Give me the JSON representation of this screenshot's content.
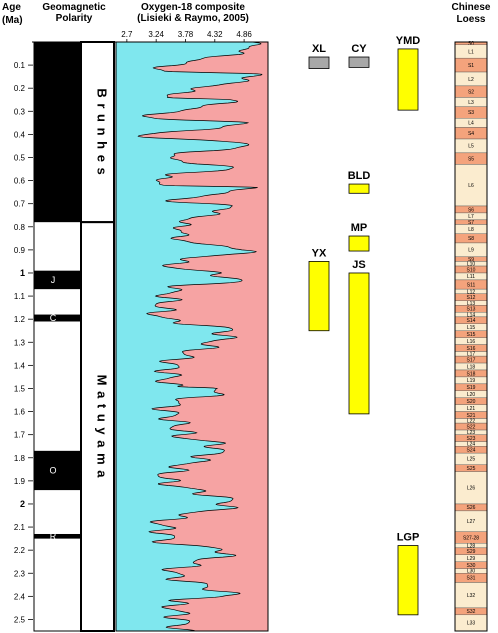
{
  "headers": {
    "age": [
      "Age",
      "(Ma)"
    ],
    "polarity": [
      "Geomagnetic",
      "Polarity"
    ],
    "oxygen": [
      "Oxygen-18 composite",
      "(Lisieki & Raymo, 2005)"
    ],
    "loess": [
      "Chinese",
      "Loess"
    ]
  },
  "chart_data": {
    "type": "area",
    "title": "Oxygen-18 composite (Lisieki & Raymo, 2005)",
    "ylabel": "Age (Ma)",
    "ylim": [
      0,
      2.55
    ],
    "xlim": [
      2.5,
      5.3
    ],
    "x_ticks": [
      "2.7",
      "3.24",
      "3.78",
      "4.32",
      "4.86"
    ],
    "x_tick_values": [
      2.7,
      3.24,
      3.78,
      4.32,
      4.86
    ],
    "y_ticks": [
      "0.1",
      "0.2",
      "0.3",
      "0.4",
      "0.5",
      "0.6",
      "0.7",
      "0.8",
      "0.9",
      "1",
      "1.1",
      "1.2",
      "1.3",
      "1.4",
      "1.5",
      "1.6",
      "1.7",
      "1.8",
      "1.9",
      "2",
      "2.1",
      "2.2",
      "2.3",
      "2.4",
      "2.5"
    ],
    "y_tick_values": [
      0.1,
      0.2,
      0.3,
      0.4,
      0.5,
      0.6,
      0.7,
      0.8,
      0.9,
      1,
      1.1,
      1.2,
      1.3,
      1.4,
      1.5,
      1.6,
      1.7,
      1.8,
      1.9,
      2,
      2.1,
      2.2,
      2.3,
      2.4,
      2.5
    ],
    "y_ticks_bold": [
      "1",
      "2"
    ],
    "fill_left_color": "#7fe7ee",
    "fill_right_color": "#f6a3a3",
    "line_color": "#000000",
    "interglacial_peaks": [
      {
        "age": 0.125,
        "value": 3.3
      },
      {
        "age": 0.24,
        "value": 3.5
      },
      {
        "age": 0.33,
        "value": 3.1
      },
      {
        "age": 0.41,
        "value": 3.0
      },
      {
        "age": 0.5,
        "value": 3.45
      },
      {
        "age": 0.58,
        "value": 3.35
      },
      {
        "age": 0.62,
        "value": 3.35
      },
      {
        "age": 0.69,
        "value": 3.6
      },
      {
        "age": 0.79,
        "value": 3.7
      },
      {
        "age": 0.86,
        "value": 3.7
      },
      {
        "age": 0.96,
        "value": 3.5
      },
      {
        "age": 1.07,
        "value": 3.5
      },
      {
        "age": 1.19,
        "value": 3.3
      },
      {
        "age": 1.41,
        "value": 3.5
      },
      {
        "age": 1.49,
        "value": 3.45
      },
      {
        "age": 1.58,
        "value": 3.45
      },
      {
        "age": 1.7,
        "value": 3.7
      },
      {
        "age": 1.89,
        "value": 3.4
      },
      {
        "age": 2.08,
        "value": 3.35
      },
      {
        "age": 2.17,
        "value": 3.45
      },
      {
        "age": 2.3,
        "value": 3.55
      },
      {
        "age": 2.42,
        "value": 3.55
      },
      {
        "age": 2.52,
        "value": 3.7
      }
    ],
    "glacial_troughs": [
      {
        "age": 0.02,
        "value": 5.0
      },
      {
        "age": 0.14,
        "value": 5.1
      },
      {
        "age": 0.25,
        "value": 4.6
      },
      {
        "age": 0.35,
        "value": 4.9
      },
      {
        "age": 0.44,
        "value": 5.0
      },
      {
        "age": 0.55,
        "value": 4.6
      },
      {
        "age": 0.63,
        "value": 4.95
      },
      {
        "age": 0.71,
        "value": 4.6
      },
      {
        "age": 0.9,
        "value": 4.9
      },
      {
        "age": 1.03,
        "value": 4.7
      },
      {
        "age": 1.25,
        "value": 4.55
      },
      {
        "age": 1.5,
        "value": 4.5
      },
      {
        "age": 1.75,
        "value": 4.4
      },
      {
        "age": 2.0,
        "value": 4.6
      },
      {
        "age": 2.2,
        "value": 4.55
      },
      {
        "age": 2.4,
        "value": 4.55
      }
    ]
  },
  "polarity": {
    "chrons": [
      {
        "label": "B r u n h e s",
        "start": 0.0,
        "end": 0.78
      },
      {
        "label": "M a t u y a m a",
        "start": 0.78,
        "end": 2.55
      }
    ],
    "normal_intervals": [
      {
        "start": 0.0,
        "end": 0.78,
        "label": ""
      },
      {
        "start": 0.99,
        "end": 1.07,
        "label": "J"
      },
      {
        "start": 1.18,
        "end": 1.21,
        "label": "C"
      },
      {
        "start": 1.77,
        "end": 1.94,
        "label": "O"
      },
      {
        "start": 2.13,
        "end": 2.15,
        "label": "R"
      }
    ]
  },
  "sites": [
    {
      "label": "XL",
      "start": 0.065,
      "end": 0.115,
      "color": "#a8a8a8",
      "column": "a"
    },
    {
      "label": "CY",
      "start": 0.065,
      "end": 0.11,
      "color": "#a8a8a8",
      "column": "b"
    },
    {
      "label": "YMD",
      "start": 0.03,
      "end": 0.295,
      "color": "#ffff00",
      "column": "c"
    },
    {
      "label": "BLD",
      "start": 0.615,
      "end": 0.655,
      "color": "#ffff00",
      "column": "b"
    },
    {
      "label": "MP",
      "start": 0.84,
      "end": 0.905,
      "color": "#ffff00",
      "column": "b"
    },
    {
      "label": "YX",
      "start": 0.95,
      "end": 1.25,
      "color": "#ffff00",
      "column": "a"
    },
    {
      "label": "JS",
      "start": 1.0,
      "end": 1.61,
      "color": "#ffff00",
      "column": "b"
    },
    {
      "label": "LGP",
      "start": 2.18,
      "end": 2.48,
      "color": "#ffff00",
      "column": "c"
    }
  ],
  "loess": {
    "palaeosol_color": "#f4a37c",
    "loess_color": "#fbeccf",
    "units": [
      {
        "label": "S0",
        "start": 0.0,
        "end": 0.012,
        "type": "S"
      },
      {
        "label": "L1",
        "start": 0.012,
        "end": 0.07,
        "type": "L"
      },
      {
        "label": "S1",
        "start": 0.07,
        "end": 0.13,
        "type": "S"
      },
      {
        "label": "L2",
        "start": 0.13,
        "end": 0.19,
        "type": "L"
      },
      {
        "label": "S2",
        "start": 0.19,
        "end": 0.24,
        "type": "S"
      },
      {
        "label": "L3",
        "start": 0.24,
        "end": 0.28,
        "type": "L"
      },
      {
        "label": "S3",
        "start": 0.28,
        "end": 0.33,
        "type": "S"
      },
      {
        "label": "L4",
        "start": 0.33,
        "end": 0.37,
        "type": "L"
      },
      {
        "label": "S4",
        "start": 0.37,
        "end": 0.42,
        "type": "S"
      },
      {
        "label": "L5",
        "start": 0.42,
        "end": 0.48,
        "type": "L"
      },
      {
        "label": "S5",
        "start": 0.48,
        "end": 0.53,
        "type": "S"
      },
      {
        "label": "L6",
        "start": 0.53,
        "end": 0.71,
        "type": "L"
      },
      {
        "label": "S6",
        "start": 0.71,
        "end": 0.74,
        "type": "S"
      },
      {
        "label": "L7",
        "start": 0.74,
        "end": 0.77,
        "type": "L"
      },
      {
        "label": "S7",
        "start": 0.77,
        "end": 0.79,
        "type": "S"
      },
      {
        "label": "L8",
        "start": 0.79,
        "end": 0.83,
        "type": "L"
      },
      {
        "label": "S8",
        "start": 0.83,
        "end": 0.87,
        "type": "S"
      },
      {
        "label": "L9",
        "start": 0.87,
        "end": 0.93,
        "type": "L"
      },
      {
        "label": "S9",
        "start": 0.93,
        "end": 0.95,
        "type": "S"
      },
      {
        "label": "L10",
        "start": 0.95,
        "end": 0.97,
        "type": "L"
      },
      {
        "label": "S10",
        "start": 0.97,
        "end": 1.0,
        "type": "S"
      },
      {
        "label": "L11",
        "start": 1.0,
        "end": 1.03,
        "type": "L"
      },
      {
        "label": "S11",
        "start": 1.03,
        "end": 1.07,
        "type": "S"
      },
      {
        "label": "L12",
        "start": 1.07,
        "end": 1.09,
        "type": "L"
      },
      {
        "label": "S12",
        "start": 1.09,
        "end": 1.12,
        "type": "S"
      },
      {
        "label": "L13",
        "start": 1.12,
        "end": 1.14,
        "type": "L"
      },
      {
        "label": "S13",
        "start": 1.14,
        "end": 1.17,
        "type": "S"
      },
      {
        "label": "L14",
        "start": 1.17,
        "end": 1.19,
        "type": "L"
      },
      {
        "label": "S14",
        "start": 1.19,
        "end": 1.22,
        "type": "S"
      },
      {
        "label": "L15",
        "start": 1.22,
        "end": 1.25,
        "type": "L"
      },
      {
        "label": "S15",
        "start": 1.25,
        "end": 1.28,
        "type": "S"
      },
      {
        "label": "L16",
        "start": 1.28,
        "end": 1.31,
        "type": "L"
      },
      {
        "label": "S16",
        "start": 1.31,
        "end": 1.34,
        "type": "S"
      },
      {
        "label": "L17",
        "start": 1.34,
        "end": 1.36,
        "type": "L"
      },
      {
        "label": "S17",
        "start": 1.36,
        "end": 1.39,
        "type": "S"
      },
      {
        "label": "L18",
        "start": 1.39,
        "end": 1.42,
        "type": "L"
      },
      {
        "label": "S18",
        "start": 1.42,
        "end": 1.45,
        "type": "S"
      },
      {
        "label": "L19",
        "start": 1.45,
        "end": 1.48,
        "type": "L"
      },
      {
        "label": "S19",
        "start": 1.48,
        "end": 1.51,
        "type": "S"
      },
      {
        "label": "L20",
        "start": 1.51,
        "end": 1.54,
        "type": "L"
      },
      {
        "label": "S20",
        "start": 1.54,
        "end": 1.57,
        "type": "S"
      },
      {
        "label": "L21",
        "start": 1.57,
        "end": 1.6,
        "type": "L"
      },
      {
        "label": "S21",
        "start": 1.6,
        "end": 1.63,
        "type": "S"
      },
      {
        "label": "L22",
        "start": 1.63,
        "end": 1.65,
        "type": "L"
      },
      {
        "label": "S22",
        "start": 1.65,
        "end": 1.68,
        "type": "S"
      },
      {
        "label": "L23",
        "start": 1.68,
        "end": 1.7,
        "type": "L"
      },
      {
        "label": "S23",
        "start": 1.7,
        "end": 1.73,
        "type": "S"
      },
      {
        "label": "L24",
        "start": 1.73,
        "end": 1.75,
        "type": "L"
      },
      {
        "label": "S24",
        "start": 1.75,
        "end": 1.78,
        "type": "S"
      },
      {
        "label": "L25",
        "start": 1.78,
        "end": 1.83,
        "type": "L"
      },
      {
        "label": "S25",
        "start": 1.83,
        "end": 1.86,
        "type": "S"
      },
      {
        "label": "L26",
        "start": 1.86,
        "end": 2.0,
        "type": "L"
      },
      {
        "label": "S26",
        "start": 2.0,
        "end": 2.03,
        "type": "S"
      },
      {
        "label": "L27",
        "start": 2.03,
        "end": 2.12,
        "type": "L"
      },
      {
        "label": "S27-28",
        "start": 2.12,
        "end": 2.17,
        "type": "S"
      },
      {
        "label": "L28",
        "start": 2.17,
        "end": 2.19,
        "type": "L"
      },
      {
        "label": "S29",
        "start": 2.19,
        "end": 2.22,
        "type": "S"
      },
      {
        "label": "L29",
        "start": 2.22,
        "end": 2.25,
        "type": "L"
      },
      {
        "label": "S30",
        "start": 2.25,
        "end": 2.28,
        "type": "S"
      },
      {
        "label": "L30",
        "start": 2.28,
        "end": 2.3,
        "type": "L"
      },
      {
        "label": "S31",
        "start": 2.3,
        "end": 2.34,
        "type": "S"
      },
      {
        "label": "L32",
        "start": 2.34,
        "end": 2.45,
        "type": "L"
      },
      {
        "label": "S32",
        "start": 2.45,
        "end": 2.48,
        "type": "S"
      },
      {
        "label": "L33",
        "start": 2.48,
        "end": 2.55,
        "type": "L"
      }
    ]
  }
}
